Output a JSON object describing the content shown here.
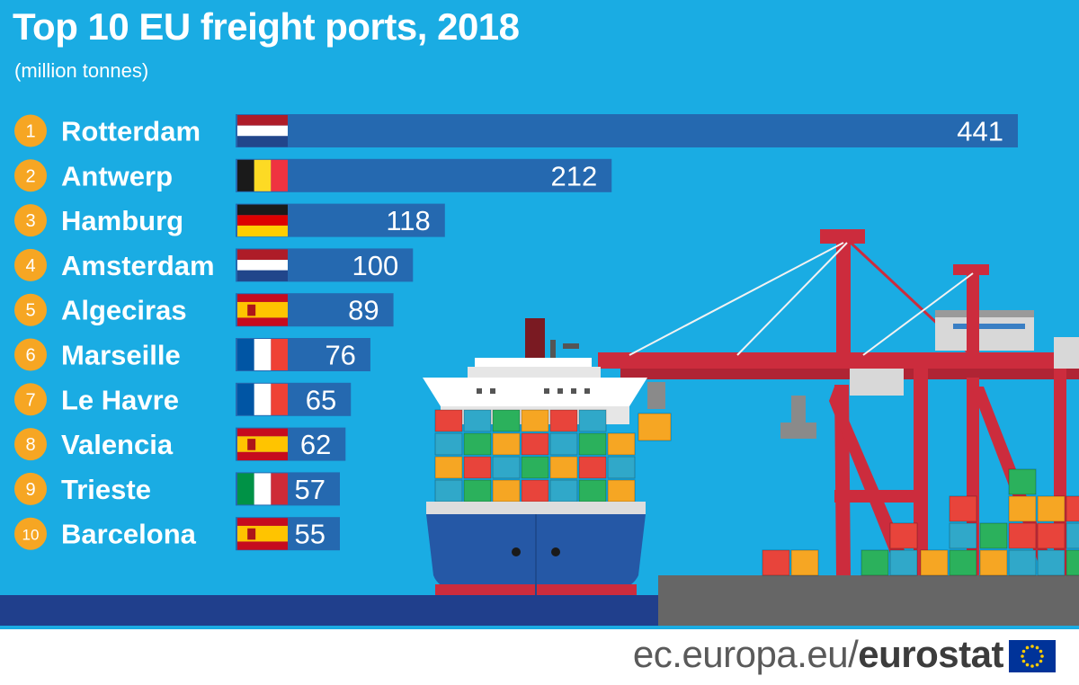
{
  "title": "Top 10 EU freight ports, 2018",
  "subtitle": "(million tonnes)",
  "footer": {
    "url_prefix": "ec.europa.eu/",
    "url_brand": "eurostat"
  },
  "colors": {
    "background": "#1aace3",
    "bar": "#2569b0",
    "rank_badge": "#f6a623",
    "text": "#ffffff",
    "crane": "#cc2c3d",
    "ship_hull": "#2558a6",
    "quay": "#666666"
  },
  "chart_data": {
    "type": "bar",
    "orientation": "horizontal",
    "title": "Top 10 EU freight ports, 2018",
    "subtitle": "(million tonnes)",
    "ranks": [
      "1",
      "2",
      "3",
      "4",
      "5",
      "6",
      "7",
      "8",
      "9",
      "10"
    ],
    "categories": [
      "Rotterdam",
      "Antwerp",
      "Hamburg",
      "Amsterdam",
      "Algeciras",
      "Marseille",
      "Le Havre",
      "Valencia",
      "Trieste",
      "Barcelona"
    ],
    "flags": [
      "netherlands",
      "belgium",
      "germany",
      "netherlands",
      "spain",
      "france",
      "france",
      "spain",
      "italy",
      "spain"
    ],
    "values": [
      441,
      212,
      118,
      100,
      89,
      76,
      65,
      62,
      57,
      55
    ],
    "value_labels": [
      "441",
      "212",
      "118",
      "100",
      "89",
      "76",
      "65",
      "62",
      "57",
      "55"
    ],
    "legend": "none",
    "grid": false
  }
}
